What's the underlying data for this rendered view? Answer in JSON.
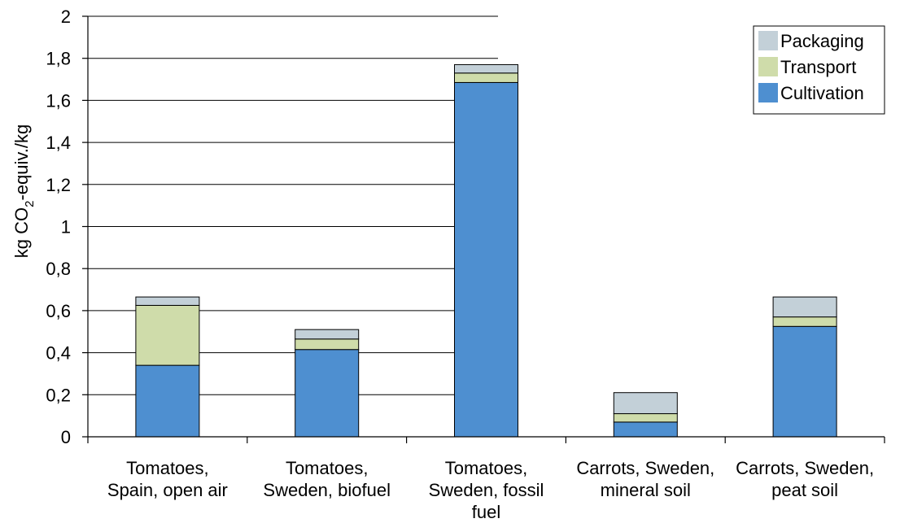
{
  "chart_data": {
    "type": "bar",
    "stacked": true,
    "categories": [
      [
        "Tomatoes,",
        "Spain, open air"
      ],
      [
        "Tomatoes,",
        "Sweden, biofuel"
      ],
      [
        "Tomatoes,",
        "Sweden, fossil",
        "fuel"
      ],
      [
        "Carrots, Sweden,",
        "mineral soil"
      ],
      [
        "Carrots, Sweden,",
        "peat soil"
      ]
    ],
    "series": [
      {
        "name": "Cultivation",
        "color": "#4e8fd0",
        "values": [
          0.34,
          0.415,
          1.685,
          0.07,
          0.525
        ]
      },
      {
        "name": "Transport",
        "color": "#cfdcaa",
        "values": [
          0.285,
          0.05,
          0.045,
          0.04,
          0.045
        ]
      },
      {
        "name": "Packaging",
        "color": "#c3d0d8",
        "values": [
          0.04,
          0.045,
          0.04,
          0.1,
          0.095
        ]
      }
    ],
    "ylabel": {
      "pre": "kg CO",
      "sub": "2",
      "post": "-equiv./kg"
    },
    "ylim": [
      0,
      2
    ],
    "yticks": [
      "0",
      "0,2",
      "0,4",
      "0,6",
      "0,8",
      "1",
      "1,2",
      "1,4",
      "1,6",
      "1,8",
      "2"
    ],
    "grid": true,
    "legend_position": "top-right",
    "legend_order": [
      "Packaging",
      "Transport",
      "Cultivation"
    ]
  }
}
